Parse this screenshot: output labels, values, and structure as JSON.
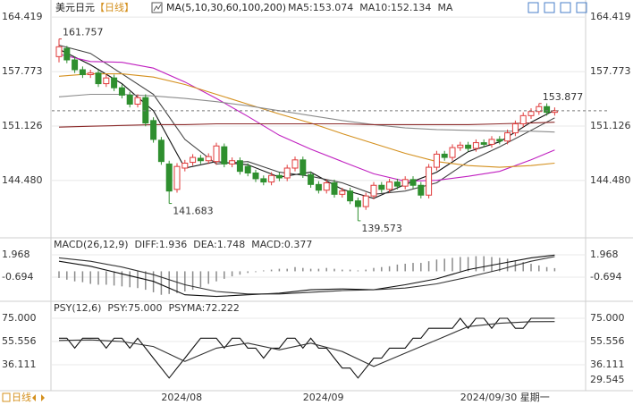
{
  "chart_data": [
    {
      "type": "candlestick",
      "title": "美元日元",
      "period": "【日线】",
      "indicator": "MA(5,10,30,60,100,200)",
      "legend": [
        {
          "text": "MA5:153.074",
          "color": "#222222"
        },
        {
          "text": "MA10:152.134",
          "color": "#222222"
        },
        {
          "text": "MA",
          "color": "#c020c0"
        }
      ],
      "up_color": "#e03a3a",
      "down_color": "#2f8f2f",
      "ylim": [
        137.6,
        165.2
      ],
      "yticks": [
        164.419,
        157.773,
        151.126,
        {
          "value": 144.48,
          "label": "144.480"
        }
      ],
      "open": [
        159.6,
        160.6,
        159.2,
        158.0,
        157.4,
        157.6,
        156.3,
        157.0,
        155.8,
        154.9,
        153.8,
        154.6,
        151.8,
        149.4,
        146.5,
        143.4,
        146.0,
        146.7,
        147.2,
        146.9,
        146.8,
        148.6,
        146.5,
        146.9,
        146.2,
        145.4,
        144.7,
        144.3,
        145.1,
        144.8,
        146.0,
        147.0,
        145.2,
        144.0,
        143.3,
        144.2,
        142.8,
        143.2,
        142.0,
        141.3,
        142.6,
        143.9,
        143.4,
        144.3,
        143.8,
        144.6,
        143.9,
        142.7,
        146.1,
        147.7,
        147.3,
        148.5,
        148.8,
        148.4,
        149.1,
        148.9,
        149.5,
        149.3,
        150.3,
        151.4,
        152.4,
        152.9,
        153.5,
        152.8
      ],
      "high": [
        161.757,
        160.9,
        159.6,
        158.4,
        158.0,
        158.0,
        157.4,
        157.4,
        156.2,
        155.3,
        155.0,
        155.0,
        152.2,
        149.8,
        146.9,
        146.6,
        147.0,
        147.7,
        147.6,
        147.8,
        149.1,
        149.0,
        147.3,
        147.3,
        146.6,
        145.8,
        145.1,
        145.5,
        145.5,
        146.4,
        147.4,
        147.4,
        145.6,
        144.4,
        144.6,
        144.6,
        143.6,
        143.6,
        142.4,
        143.0,
        144.3,
        144.3,
        144.7,
        144.7,
        145.0,
        145.0,
        144.3,
        146.5,
        148.1,
        148.1,
        148.9,
        149.2,
        149.2,
        149.5,
        149.5,
        149.9,
        149.9,
        150.7,
        151.8,
        152.8,
        153.3,
        153.877,
        153.9,
        153.4
      ],
      "low": [
        158.9,
        158.8,
        157.6,
        157.0,
        157.0,
        155.9,
        155.9,
        155.4,
        154.5,
        153.4,
        153.4,
        151.1,
        149.1,
        146.4,
        141.683,
        143.0,
        145.6,
        146.3,
        146.5,
        146.5,
        146.4,
        146.1,
        146.1,
        145.2,
        145.0,
        144.3,
        143.9,
        143.9,
        144.4,
        144.4,
        145.6,
        144.8,
        143.6,
        142.9,
        142.9,
        142.4,
        142.4,
        141.6,
        139.573,
        140.9,
        142.2,
        143.0,
        143.0,
        143.4,
        143.4,
        143.5,
        142.3,
        142.3,
        145.7,
        146.9,
        146.9,
        148.1,
        148.0,
        148.0,
        148.5,
        148.5,
        148.9,
        148.9,
        149.9,
        151.0,
        152.0,
        152.5,
        152.4,
        152.4
      ],
      "close": [
        160.8,
        159.2,
        158.0,
        157.4,
        157.6,
        156.3,
        157.0,
        155.8,
        154.9,
        153.8,
        154.6,
        151.5,
        149.5,
        146.8,
        143.2,
        146.2,
        146.6,
        147.3,
        146.9,
        147.4,
        148.7,
        146.5,
        146.9,
        145.6,
        145.4,
        144.7,
        144.3,
        145.1,
        144.8,
        146.0,
        147.0,
        145.2,
        144.0,
        143.3,
        144.2,
        142.8,
        143.2,
        142.0,
        141.3,
        142.6,
        143.9,
        143.4,
        144.3,
        143.8,
        144.6,
        143.9,
        142.7,
        146.1,
        147.7,
        147.3,
        148.5,
        148.8,
        148.4,
        149.1,
        148.9,
        149.5,
        149.3,
        150.3,
        151.4,
        152.4,
        152.9,
        153.5,
        152.8,
        153.0
      ],
      "series": [
        {
          "color": "#111111",
          "x": [
            0,
            4,
            8,
            12,
            16,
            20,
            24,
            28,
            32,
            36,
            40,
            44,
            48,
            52,
            56,
            60,
            63
          ],
          "values": [
            160.5,
            158.6,
            156.3,
            153.0,
            146.0,
            146.8,
            146.4,
            144.9,
            145.5,
            143.4,
            142.3,
            144.0,
            145.5,
            148.0,
            149.2,
            151.6,
            153.074
          ]
        },
        {
          "color": "#444444",
          "x": [
            0,
            4,
            8,
            12,
            16,
            20,
            24,
            28,
            32,
            36,
            40,
            44,
            48,
            52,
            56,
            60,
            63
          ],
          "values": [
            161.0,
            160.0,
            157.5,
            155.0,
            149.5,
            146.5,
            146.8,
            145.5,
            145.0,
            144.2,
            142.8,
            143.2,
            144.2,
            146.8,
            148.6,
            150.6,
            152.134
          ]
        },
        {
          "color": "#c020c0",
          "x": [
            0,
            4,
            8,
            12,
            16,
            20,
            24,
            28,
            32,
            36,
            40,
            44,
            48,
            52,
            56,
            60,
            63
          ],
          "values": [
            159.9,
            159.0,
            158.9,
            158.2,
            156.5,
            154.5,
            152.3,
            150.0,
            148.3,
            146.8,
            145.3,
            144.4,
            144.5,
            145.0,
            145.6,
            147.0,
            148.2
          ]
        },
        {
          "color": "#d4901e",
          "x": [
            0,
            4,
            8,
            12,
            16,
            20,
            24,
            28,
            32,
            36,
            40,
            44,
            48,
            52,
            56,
            60,
            63
          ],
          "values": [
            157.2,
            157.5,
            157.5,
            157.1,
            156.2,
            155.0,
            153.8,
            152.6,
            151.5,
            150.2,
            149.0,
            147.8,
            146.8,
            146.3,
            146.1,
            146.3,
            146.6
          ]
        },
        {
          "color": "#8c8c8c",
          "x": [
            0,
            4,
            8,
            12,
            16,
            20,
            24,
            28,
            32,
            36,
            40,
            44,
            48,
            52,
            56,
            60,
            63
          ],
          "values": [
            154.7,
            155.0,
            155.0,
            154.8,
            154.5,
            154.1,
            153.6,
            153.0,
            152.4,
            151.8,
            151.3,
            150.9,
            150.7,
            150.6,
            150.5,
            150.5,
            150.4
          ]
        },
        {
          "color": "#8b2a2a",
          "x": [
            0,
            4,
            8,
            12,
            16,
            20,
            24,
            28,
            32,
            36,
            40,
            44,
            48,
            52,
            56,
            60,
            63
          ],
          "values": [
            151.0,
            151.1,
            151.2,
            151.3,
            151.3,
            151.4,
            151.4,
            151.4,
            151.4,
            151.4,
            151.3,
            151.3,
            151.3,
            151.3,
            151.4,
            151.5,
            151.6
          ]
        }
      ],
      "annotations": [
        {
          "index": 0,
          "value": 161.757,
          "color": "#d04040"
        },
        {
          "index": 14,
          "value": 141.683,
          "color": "#3a9a3a"
        },
        {
          "index": 38,
          "value": 139.573,
          "color": "#3a9a3a"
        },
        {
          "index": 61,
          "value": 153.877,
          "color": "#d04040"
        }
      ]
    },
    {
      "type": "macd",
      "legend": [
        {
          "text": "MACD(26,12,9)",
          "color": "#222222"
        },
        {
          "text": "DIFF:1.936",
          "color": "#222222"
        },
        {
          "text": "DEA:1.748",
          "color": "#222222"
        },
        {
          "text": "MACD:0.377",
          "color": "#c020c0"
        }
      ],
      "bar_color": "#8a8a8a",
      "values": [
        -0.8,
        -1.0,
        -1.2,
        -1.3,
        -1.5,
        -1.6,
        -1.6,
        -1.7,
        -1.8,
        -1.9,
        -2.0,
        -2.2,
        -2.5,
        -2.8,
        -2.7,
        -2.6,
        -2.4,
        -2.2,
        -1.9,
        -1.5,
        -1.2,
        -0.9,
        -0.6,
        -0.4,
        -0.2,
        -0.1,
        0.1,
        0.2,
        0.3,
        0.3,
        0.5,
        0.4,
        0.3,
        0.3,
        0.4,
        0.3,
        0.2,
        0.2,
        0.1,
        0.2,
        0.4,
        0.5,
        0.6,
        0.8,
        0.9,
        1.0,
        1.0,
        1.2,
        1.4,
        1.5,
        1.6,
        1.7,
        1.7,
        1.8,
        1.8,
        1.7,
        1.6,
        1.5,
        1.3,
        1.1,
        0.9,
        0.7,
        0.5,
        0.377
      ],
      "series": [
        {
          "color": "#111111",
          "x": [
            0,
            4,
            8,
            12,
            16,
            20,
            24,
            28,
            32,
            36,
            40,
            44,
            48,
            52,
            56,
            60,
            63
          ],
          "values": [
            1.2,
            0.6,
            -0.3,
            -1.2,
            -2.8,
            -3.0,
            -2.8,
            -2.6,
            -2.2,
            -2.1,
            -2.2,
            -1.6,
            -0.9,
            0.2,
            0.9,
            1.6,
            1.936
          ]
        },
        {
          "color": "#333333",
          "x": [
            0,
            4,
            8,
            12,
            16,
            20,
            24,
            28,
            32,
            36,
            40,
            44,
            48,
            52,
            56,
            60,
            63
          ],
          "values": [
            1.6,
            1.2,
            0.5,
            -0.4,
            -1.6,
            -2.4,
            -2.7,
            -2.7,
            -2.5,
            -2.3,
            -2.2,
            -2.0,
            -1.5,
            -0.7,
            0.2,
            1.2,
            1.748
          ]
        }
      ],
      "ylim": [
        -3.36,
        3.56
      ],
      "yticks": [
        1.968,
        -0.694
      ]
    },
    {
      "type": "line",
      "legend": [
        {
          "text": "PSY(12,6)",
          "color": "#222222"
        },
        {
          "text": "PSY:75.000",
          "color": "#222222"
        },
        {
          "text": "PSYMA:72.222",
          "color": "#222222"
        }
      ],
      "series": [
        {
          "color": "#111111",
          "values": [
            58.333,
            58.333,
            50,
            58.333,
            58.333,
            58.333,
            50,
            58.333,
            58.333,
            50,
            58.333,
            50,
            41.667,
            33.333,
            25,
            33.333,
            41.667,
            50,
            58.333,
            58.333,
            58.333,
            50,
            58.333,
            58.333,
            50,
            50,
            41.667,
            50,
            50,
            58.333,
            58.333,
            50,
            58.333,
            50,
            50,
            41.667,
            33.333,
            33.333,
            25,
            33.333,
            41.667,
            41.667,
            50,
            50,
            50,
            58.333,
            58.333,
            66.667,
            66.667,
            66.667,
            66.667,
            75,
            66.667,
            75,
            75,
            66.667,
            75,
            75,
            66.667,
            66.667,
            75,
            75,
            75,
            75
          ]
        },
        {
          "color": "#333333",
          "x": [
            0,
            4,
            8,
            12,
            16,
            20,
            24,
            28,
            32,
            36,
            40,
            44,
            48,
            52,
            56,
            60,
            63
          ],
          "values": [
            56.5,
            56.9,
            55.6,
            51.4,
            38.9,
            50,
            54.2,
            48.6,
            54.2,
            47.2,
            34.7,
            45.8,
            56.9,
            68.1,
            70.8,
            72.2,
            72.222
          ]
        }
      ],
      "ylim": [
        15.9,
        87.0
      ],
      "yticks": [
        {
          "value": 75,
          "label": "75.000"
        },
        55.556,
        36.111
      ],
      "cursor_value": 29.545,
      "cursor_color": "#d4901e"
    }
  ],
  "footer": {
    "period": "日线",
    "x_labels": [
      {
        "label": "2024/08",
        "index": 13
      },
      {
        "label": "2024/09",
        "index": 31
      }
    ],
    "cursor_date": "2024/09/30 星期一",
    "cursor_index": 51,
    "cursor_color": "#d4901e"
  }
}
